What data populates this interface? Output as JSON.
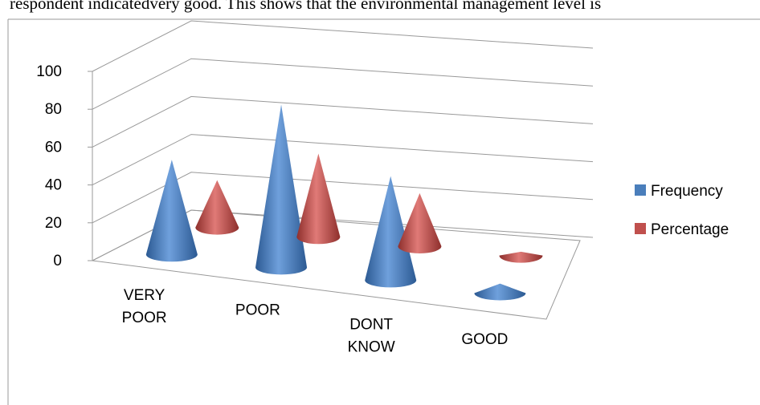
{
  "document_text": "respondent indicatedvery good.  This shows that the environmental management level is",
  "chart_data": {
    "type": "cone",
    "categories": [
      "VERY POOR",
      "POOR",
      "DONT KNOW",
      "GOOD"
    ],
    "series": [
      {
        "name": "Frequency",
        "color": "#4a7ebb",
        "values": [
          50,
          86,
          55,
          5
        ]
      },
      {
        "name": "Percentage",
        "color": "#c0504d",
        "values": [
          25,
          44,
          28,
          2
        ]
      }
    ],
    "ylim": [
      0,
      100
    ],
    "yticks": [
      0,
      20,
      40,
      60,
      80,
      100
    ],
    "grid": true,
    "legend": "right"
  }
}
